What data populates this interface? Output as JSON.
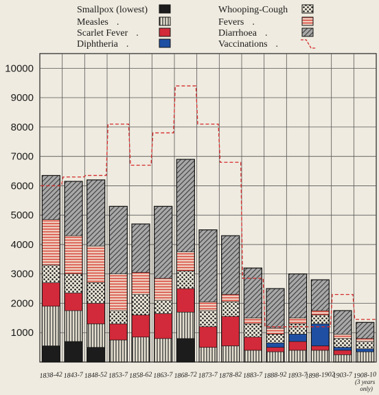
{
  "chart_data": {
    "type": "bar",
    "stacked": true,
    "title": "",
    "xlabel": "",
    "ylabel": "",
    "ylim": [
      0,
      10500
    ],
    "yticks": [
      1000,
      2000,
      3000,
      4000,
      5000,
      6000,
      7000,
      8000,
      9000,
      10000
    ],
    "grid": true,
    "legend_position": "top",
    "categories": [
      "1838-42",
      "1843-7",
      "1848-52",
      "1853-7",
      "1858-62",
      "1863-7",
      "1868-72",
      "1873-7",
      "1878-82",
      "1883-7",
      "1888-92",
      "1893-7",
      "1898-1902",
      "1903-7",
      "1908-10"
    ],
    "category_note": {
      "index": 14,
      "text": "(3 years only)"
    },
    "series": [
      {
        "name": "Smallpox (lowest)",
        "color": "#1c1c1c",
        "pattern": "solid-black",
        "values": [
          550,
          700,
          500,
          0,
          0,
          0,
          800,
          0,
          0,
          0,
          0,
          0,
          0,
          0,
          0
        ]
      },
      {
        "name": "Measles",
        "color": "#d9d4c2",
        "pattern": "vertical-lines",
        "values": [
          1350,
          1050,
          800,
          750,
          850,
          800,
          900,
          500,
          550,
          400,
          350,
          400,
          400,
          250,
          350
        ]
      },
      {
        "name": "Scarlet Fever",
        "color": "#d22a3a",
        "pattern": "solid-red",
        "values": [
          800,
          600,
          700,
          550,
          750,
          850,
          800,
          700,
          1000,
          450,
          150,
          300,
          150,
          150,
          0
        ]
      },
      {
        "name": "Diphtheria",
        "color": "#1f4fa3",
        "pattern": "solid-blue",
        "values": [
          0,
          0,
          0,
          0,
          0,
          0,
          0,
          0,
          0,
          0,
          150,
          250,
          750,
          100,
          100
        ]
      },
      {
        "name": "Whooping-Cough",
        "color": "#2a2a2a",
        "pattern": "dots",
        "values": [
          600,
          650,
          700,
          450,
          700,
          450,
          600,
          550,
          500,
          450,
          300,
          350,
          300,
          300,
          250
        ]
      },
      {
        "name": "Fevers",
        "color": "#e65a4a",
        "pattern": "horizontal-lines",
        "values": [
          1550,
          1300,
          1250,
          1250,
          750,
          750,
          650,
          300,
          250,
          200,
          200,
          200,
          150,
          150,
          100
        ]
      },
      {
        "name": "Diarrhoea",
        "color": "#6e6e6e",
        "pattern": "diagonal-hatch",
        "values": [
          1500,
          1850,
          2250,
          2300,
          1650,
          2450,
          3150,
          2450,
          2000,
          1700,
          1350,
          1500,
          1050,
          800,
          550
        ]
      }
    ],
    "line_series": {
      "name": "Vaccinations",
      "color": "#d42a2a",
      "style": "dashed",
      "values": [
        6000,
        6300,
        6350,
        8100,
        6700,
        7800,
        9400,
        8100,
        6800,
        2850,
        1200,
        1200,
        1200,
        2300,
        1450
      ]
    }
  }
}
